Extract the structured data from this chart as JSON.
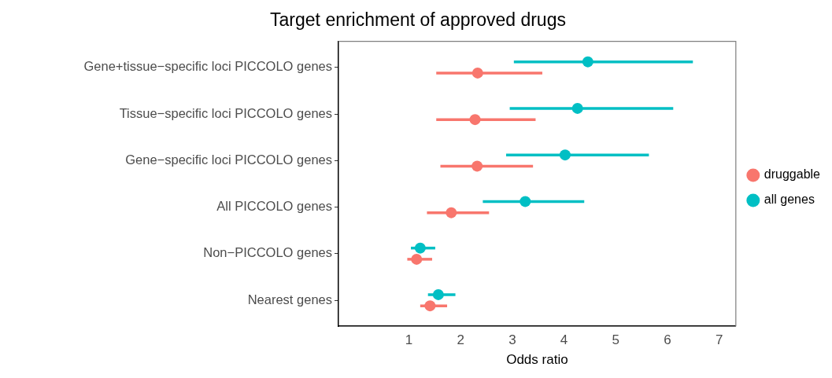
{
  "chart_data": {
    "type": "scatter",
    "title": "Target enrichment of approved drugs",
    "xlabel": "Odds ratio",
    "categories": [
      "Gene+tissue−specific loci PICCOLO genes",
      "Tissue−specific loci PICCOLO genes",
      "Gene−specific loci PICCOLO genes",
      "All PICCOLO genes",
      "Non−PICCOLO genes",
      "Nearest genes"
    ],
    "orientation": "horizontal",
    "xlim": [
      -0.36,
      7.32
    ],
    "xticks": [
      1,
      2,
      3,
      4,
      5,
      6,
      7
    ],
    "grid": false,
    "legend": "right",
    "marker": "circle",
    "series": [
      {
        "name": "druggable",
        "color": "#f8766d",
        "values": [
          2.33,
          2.28,
          2.32,
          1.82,
          1.15,
          1.41
        ],
        "errors": [
          [
            1.53,
            3.58
          ],
          [
            1.53,
            3.45
          ],
          [
            1.61,
            3.4
          ],
          [
            1.35,
            2.55
          ],
          [
            0.97,
            1.45
          ],
          [
            1.22,
            1.74
          ]
        ]
      },
      {
        "name": "all genes",
        "color": "#00bfc4",
        "values": [
          4.46,
          4.26,
          4.02,
          3.25,
          1.22,
          1.57
        ],
        "errors": [
          [
            3.03,
            6.49
          ],
          [
            2.95,
            6.11
          ],
          [
            2.88,
            5.64
          ],
          [
            2.43,
            4.39
          ],
          [
            1.04,
            1.51
          ],
          [
            1.37,
            1.9
          ]
        ]
      }
    ]
  }
}
